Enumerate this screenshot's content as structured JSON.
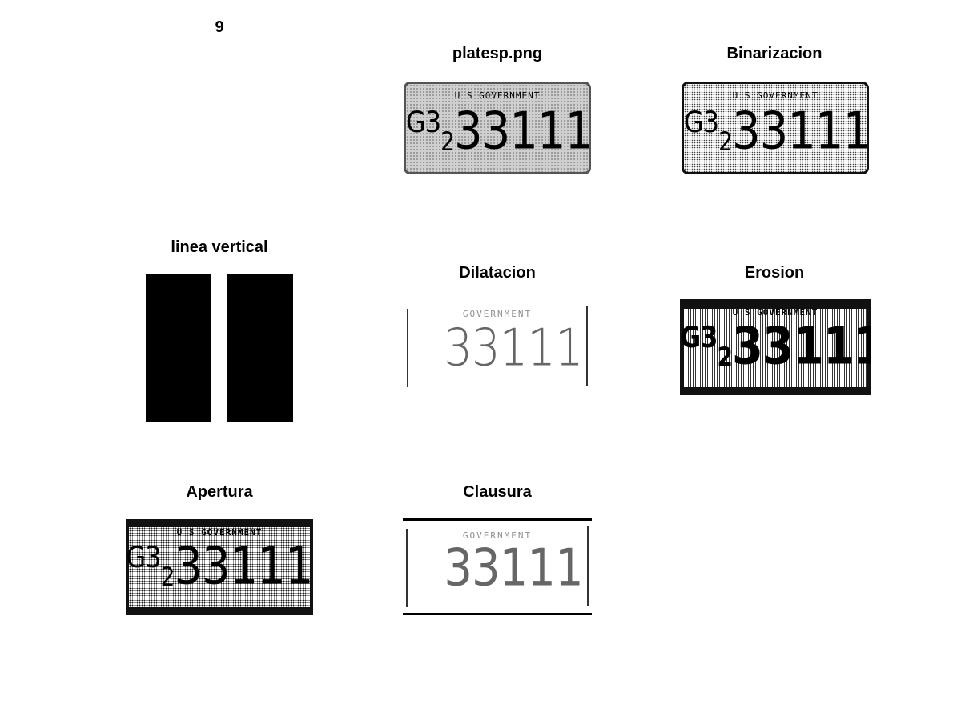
{
  "figure_number": "9",
  "panels": {
    "original": {
      "title": "platesp.png",
      "gov_text": "U S GOVERNMENT",
      "prefix": "G",
      "sup": "3",
      "sub": "2",
      "digits": "33111"
    },
    "binarized": {
      "title": "Binarizacion",
      "gov_text": "U S GOVERNMENT",
      "prefix": "G",
      "sup": "3",
      "sub": "2",
      "digits": "33111"
    },
    "structuring_element": {
      "title": "linea vertical"
    },
    "dilation": {
      "title": "Dilatacion",
      "gov_text": "GOVERNMENT",
      "digits": "33111"
    },
    "erosion": {
      "title": "Erosion",
      "gov_text": "U S GOVERNMENT",
      "prefix": "G",
      "sup": "3",
      "sub": "2",
      "digits": "33111"
    },
    "opening": {
      "title": "Apertura",
      "gov_text": "U S GOVERNMENT",
      "prefix": "G",
      "sup": "3",
      "sub": "2",
      "digits": "33111"
    },
    "closing": {
      "title": "Clausura",
      "gov_text": "GOVERNMENT",
      "digits": "33111"
    }
  }
}
